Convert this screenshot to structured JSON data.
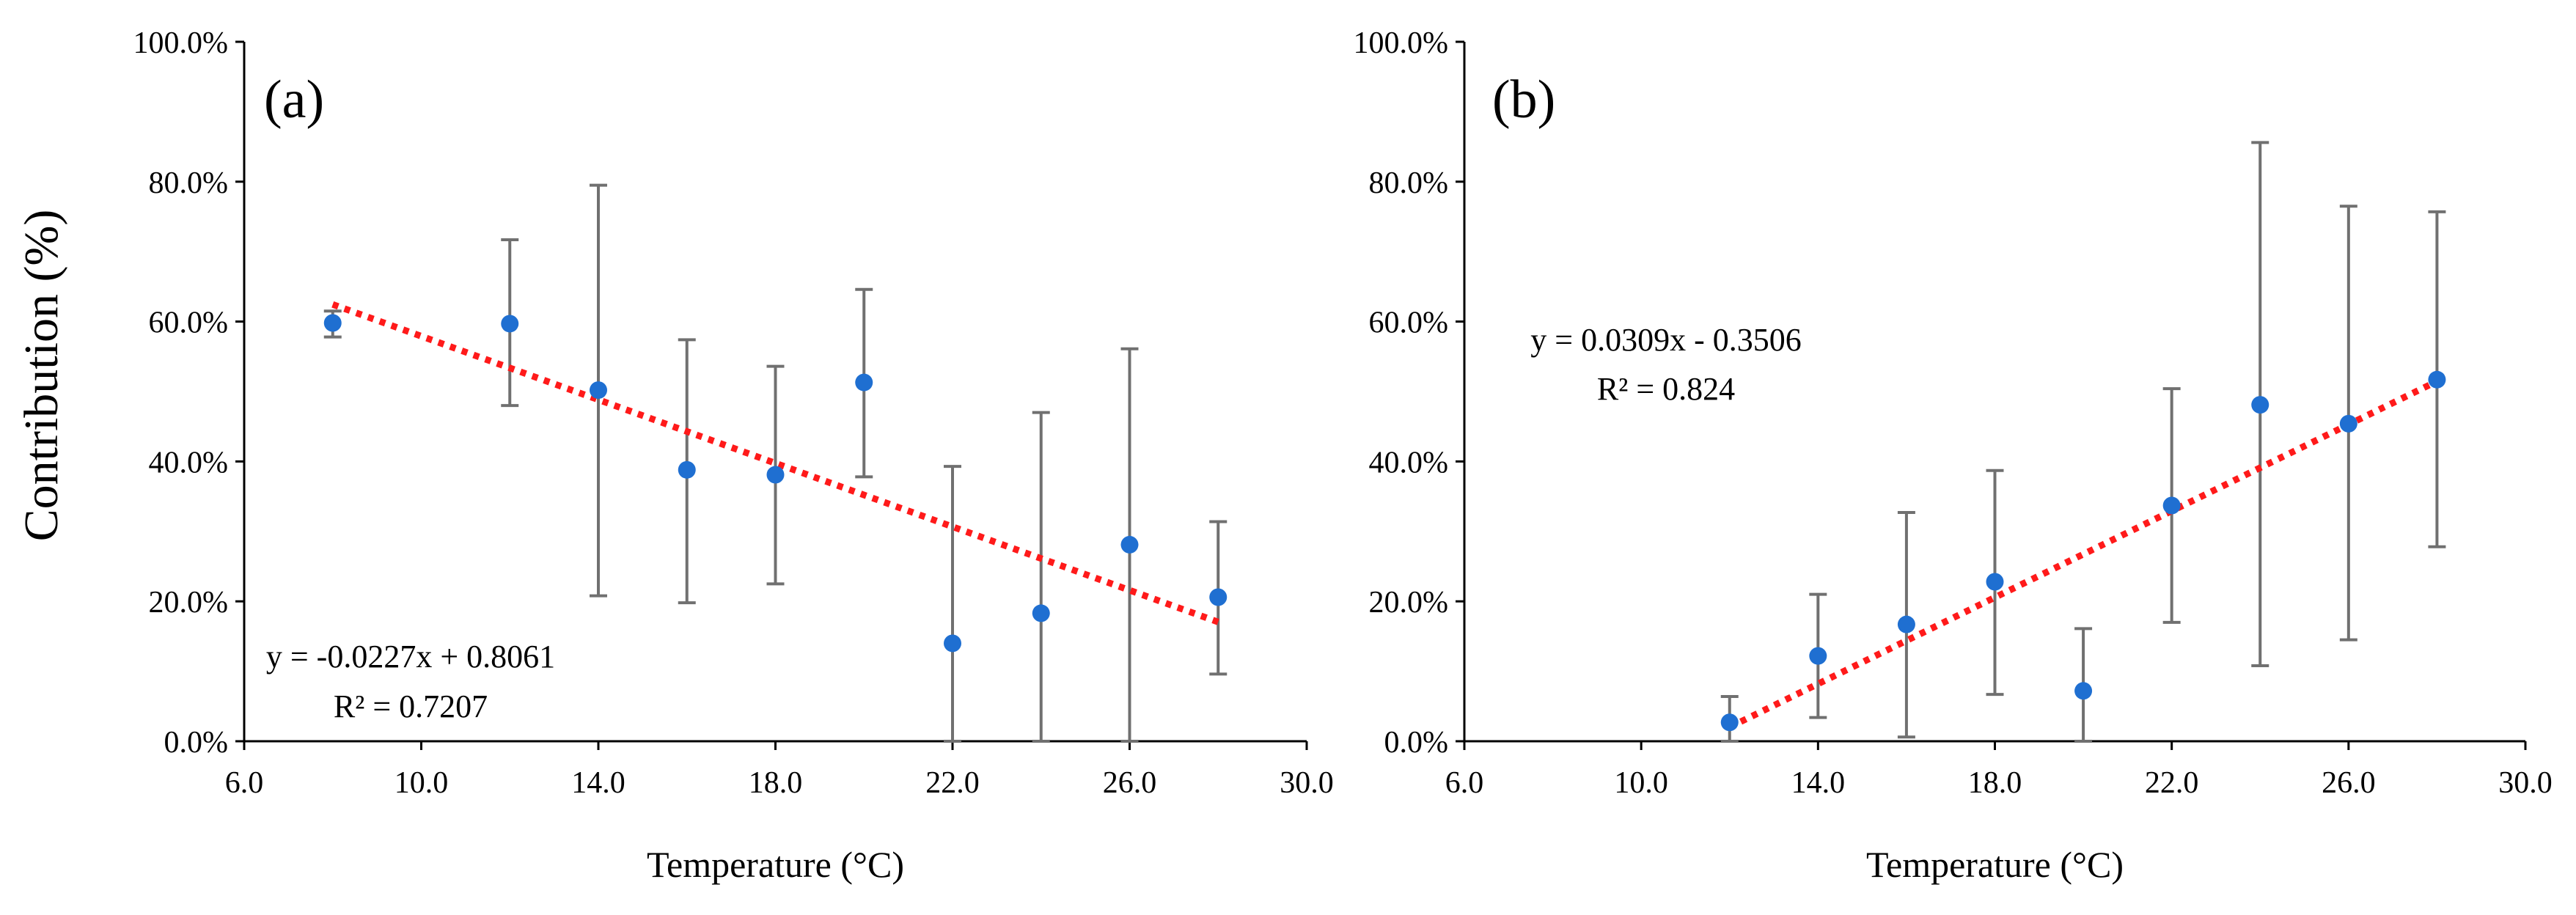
{
  "ylabel_shared": "Contribution  (%)",
  "chart_data": [
    {
      "type": "scatter",
      "panel_label": "(a)",
      "xlabel": "Temperature (°C)",
      "xlim": [
        6,
        30
      ],
      "ylim": [
        0,
        100
      ],
      "x_ticks": [
        6,
        10,
        14,
        18,
        22,
        26,
        30
      ],
      "x_tick_labels": [
        "6.0",
        "10.0",
        "14.0",
        "18.0",
        "22.0",
        "26.0",
        "30.0"
      ],
      "y_ticks": [
        0,
        20,
        40,
        60,
        80,
        100
      ],
      "y_tick_labels": [
        "0.0%",
        "20.0%",
        "40.0%",
        "60.0%",
        "80.0%",
        "100.0%"
      ],
      "grid": false,
      "points": [
        {
          "x": 8,
          "y": 59.8,
          "err_low": 57.8,
          "err_high": 61.5
        },
        {
          "x": 12,
          "y": 59.7,
          "err_low": 48.0,
          "err_high": 71.7
        },
        {
          "x": 14,
          "y": 50.2,
          "err_low": 20.8,
          "err_high": 79.5
        },
        {
          "x": 16,
          "y": 38.8,
          "err_low": 19.8,
          "err_high": 57.4
        },
        {
          "x": 18,
          "y": 38.1,
          "err_low": 22.5,
          "err_high": 53.6
        },
        {
          "x": 20,
          "y": 51.3,
          "err_low": 37.8,
          "err_high": 64.6
        },
        {
          "x": 22,
          "y": 14.0,
          "err_low": 0.0,
          "err_high": 39.3
        },
        {
          "x": 24,
          "y": 18.3,
          "err_low": 0.0,
          "err_high": 47.0
        },
        {
          "x": 26,
          "y": 28.1,
          "err_low": 0.0,
          "err_high": 56.1
        },
        {
          "x": 28,
          "y": 20.6,
          "err_low": 9.6,
          "err_high": 31.4
        }
      ],
      "trendline": {
        "slope": -0.0227,
        "intercept": 0.8061,
        "x_range": [
          8,
          28
        ]
      },
      "equation_line1": "y = -0.0227x + 0.8061",
      "equation_line2": "R² = 0.7207",
      "marker_color": "#1f6fd1",
      "errorbar_color": "#707070",
      "trend_color": "#ff1a1a"
    },
    {
      "type": "scatter",
      "panel_label": "(b)",
      "xlabel": "Temperature (°C)",
      "xlim": [
        6,
        30
      ],
      "ylim": [
        0,
        100
      ],
      "x_ticks": [
        6,
        10,
        14,
        18,
        22,
        26,
        30
      ],
      "x_tick_labels": [
        "6.0",
        "10.0",
        "14.0",
        "18.0",
        "22.0",
        "26.0",
        "30.0"
      ],
      "y_ticks": [
        0,
        20,
        40,
        60,
        80,
        100
      ],
      "y_tick_labels": [
        "0.0%",
        "20.0%",
        "40.0%",
        "60.0%",
        "80.0%",
        "100.0%"
      ],
      "grid": false,
      "points": [
        {
          "x": 12,
          "y": 2.7,
          "err_low": 0.0,
          "err_high": 6.4
        },
        {
          "x": 14,
          "y": 12.2,
          "err_low": 3.4,
          "err_high": 21.0
        },
        {
          "x": 16,
          "y": 16.7,
          "err_low": 0.6,
          "err_high": 32.7
        },
        {
          "x": 18,
          "y": 22.8,
          "err_low": 6.7,
          "err_high": 38.7
        },
        {
          "x": 20,
          "y": 7.2,
          "err_low": 0.0,
          "err_high": 16.1
        },
        {
          "x": 22,
          "y": 33.7,
          "err_low": 17.0,
          "err_high": 50.4
        },
        {
          "x": 24,
          "y": 48.1,
          "err_low": 10.8,
          "err_high": 85.6
        },
        {
          "x": 26,
          "y": 45.4,
          "err_low": 14.5,
          "err_high": 76.5
        },
        {
          "x": 28,
          "y": 51.7,
          "err_low": 27.8,
          "err_high": 75.7
        }
      ],
      "trendline": {
        "slope": 0.0309,
        "intercept": -0.3506,
        "x_range": [
          12,
          28
        ]
      },
      "equation_line1": "y = 0.0309x  - 0.3506",
      "equation_line2": "R² = 0.824",
      "marker_color": "#1f6fd1",
      "errorbar_color": "#707070",
      "trend_color": "#ff1a1a"
    }
  ]
}
